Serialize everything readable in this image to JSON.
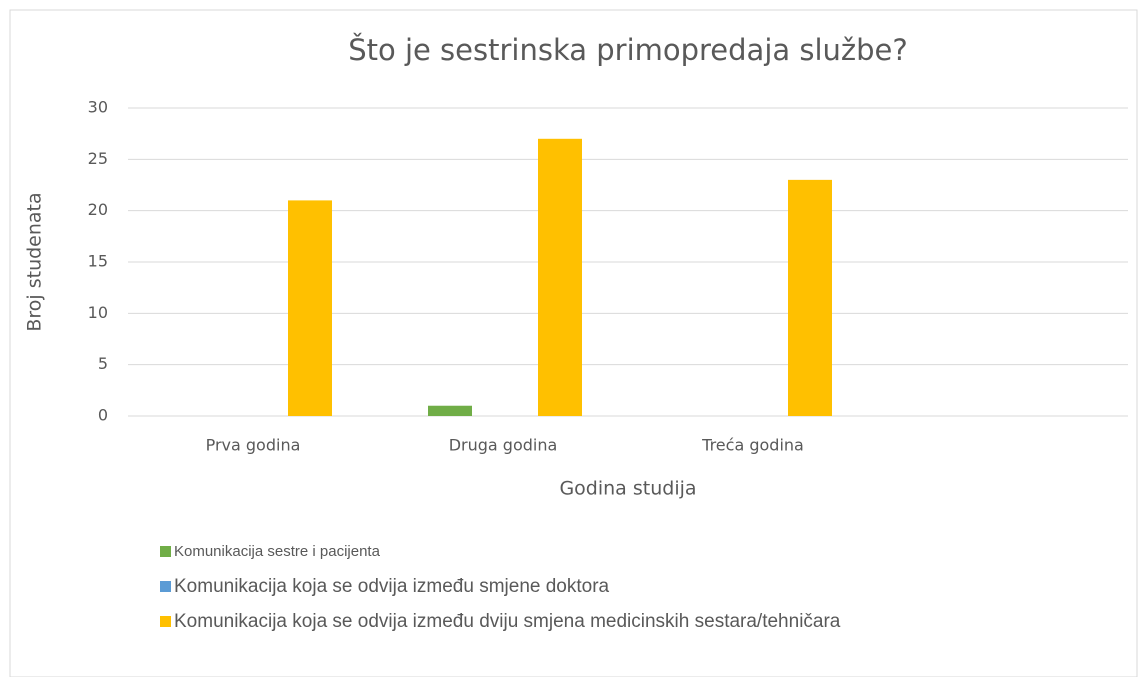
{
  "chart_data": {
    "type": "bar",
    "title": "Što je sestrinska primopredaja službe?",
    "x_label": "Godina studija",
    "y_label": "Broj studenata",
    "categories": [
      "Prva godina",
      "Druga godina",
      "Treća godina",
      null
    ],
    "series": [
      {
        "name": "Komunikacija sestre i pacijenta",
        "color": "#70ad47",
        "values": [
          0,
          1,
          0,
          null
        ]
      },
      {
        "name": "Komunikacija koja se odvija između smjene doktora",
        "color": "#5b9bd5",
        "values": [
          0,
          0,
          0,
          null
        ]
      },
      {
        "name": "Komunikacija koja se odvija između dviju smjena medicinskih sestara/tehničara",
        "color": "#ffc000",
        "values": [
          21,
          27,
          23,
          null
        ]
      }
    ],
    "ylim": [
      0,
      30
    ],
    "yticks": [
      0,
      5,
      10,
      15,
      20,
      25,
      30
    ],
    "grid": true,
    "legend": "bottom"
  }
}
